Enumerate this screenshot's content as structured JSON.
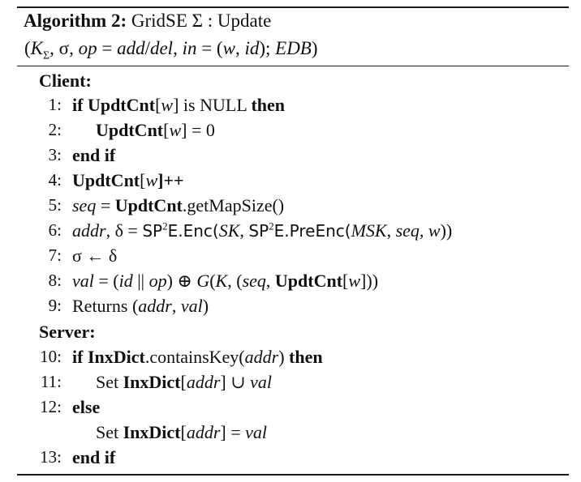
{
  "algorithm": {
    "label": "Algorithm 2:",
    "name": "GridSE Σ : Update",
    "signature_parts": {
      "open": "(",
      "k": "K",
      "k_sub": "Σ",
      "sep1": ", σ, ",
      "op": "op",
      "eq1": " = ",
      "add": "add",
      "slash": "/",
      "del": "del",
      "sep2": ", ",
      "in": "in",
      "eq2": " = (",
      "w": "w",
      "comma": ", ",
      "id": "id",
      "close_semi": "); ",
      "edb": "EDB",
      "close": ")"
    }
  },
  "client": {
    "label": "Client:",
    "lines": [
      {
        "num": "1:",
        "parts": [
          "if ",
          "UpdtCnt",
          "[",
          "w",
          "] is NULL ",
          "then"
        ]
      },
      {
        "num": "2:",
        "parts": [
          "UpdtCnt",
          "[",
          "w",
          "] = 0"
        ]
      },
      {
        "num": "3:",
        "parts": [
          "end if"
        ]
      },
      {
        "num": "4:",
        "parts": [
          "UpdtCnt",
          "[",
          "w",
          "]++"
        ]
      },
      {
        "num": "5:",
        "parts": [
          "seq",
          " = ",
          "UpdtCnt",
          ".getMapSize()"
        ]
      },
      {
        "num": "6:",
        "parts": [
          "addr",
          ", δ = ",
          "SP",
          "2",
          "E.Enc(",
          "SK",
          ", ",
          "SP",
          "2",
          "E.PreEnc(",
          "MSK",
          ", ",
          "seq",
          ", ",
          "w",
          "))"
        ]
      },
      {
        "num": "7:",
        "parts": [
          "σ ← δ"
        ]
      },
      {
        "num": "8:",
        "parts": [
          "val",
          " = (",
          "id",
          " || ",
          "op",
          ") ⊕ ",
          "G",
          "(",
          "K",
          ", (",
          "seq",
          ", ",
          "UpdtCnt",
          "[",
          "w",
          "]))"
        ]
      },
      {
        "num": "9:",
        "parts": [
          "Returns (",
          "addr",
          ", ",
          "val",
          ")"
        ]
      }
    ]
  },
  "server": {
    "label": "Server:",
    "lines": [
      {
        "num": "10:",
        "parts": [
          "if ",
          "InxDict",
          ".containsKey(",
          "addr",
          ") ",
          "then"
        ]
      },
      {
        "num": "11:",
        "parts": [
          "Set ",
          "InxDict",
          "[",
          "addr",
          "] ∪ ",
          "val"
        ]
      },
      {
        "num": "12:",
        "parts": [
          "else"
        ]
      },
      {
        "num": "",
        "parts": [
          "Set ",
          "InxDict",
          "[",
          "addr",
          "] = ",
          "val"
        ]
      },
      {
        "num": "13:",
        "parts": [
          "end if"
        ]
      }
    ]
  }
}
